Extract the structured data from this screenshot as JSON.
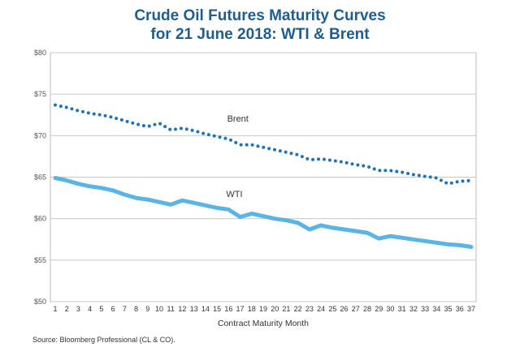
{
  "chart_data": {
    "type": "line",
    "title_lines": [
      "Crude Oil Futures Maturity Curves",
      "for 21 June 2018: WTI & Brent"
    ],
    "xlabel": "Contract Maturity Month",
    "ylabel": "",
    "x": [
      1,
      2,
      3,
      4,
      5,
      6,
      7,
      8,
      9,
      10,
      11,
      12,
      13,
      14,
      15,
      16,
      17,
      18,
      19,
      20,
      21,
      22,
      23,
      24,
      25,
      26,
      27,
      28,
      29,
      30,
      31,
      32,
      33,
      34,
      35,
      36,
      37
    ],
    "xlim": [
      1,
      37
    ],
    "ylim": [
      50,
      80
    ],
    "yticks": [
      50,
      55,
      60,
      65,
      70,
      75,
      80
    ],
    "ytick_labels": [
      "$50",
      "$55",
      "$60",
      "$65",
      "$70",
      "$75",
      "$80"
    ],
    "grid": true,
    "series": [
      {
        "name": "Brent",
        "style": "dotted",
        "color": "#1f72b8",
        "values": [
          73.7,
          73.4,
          73.0,
          72.7,
          72.5,
          72.2,
          71.8,
          71.4,
          71.1,
          71.5,
          70.7,
          70.9,
          70.6,
          70.2,
          69.9,
          69.6,
          68.9,
          68.9,
          68.6,
          68.3,
          68.0,
          67.7,
          67.1,
          67.2,
          67.0,
          66.8,
          66.5,
          66.3,
          65.8,
          65.8,
          65.6,
          65.3,
          65.1,
          64.9,
          64.2,
          64.5,
          64.6
        ]
      },
      {
        "name": "WTI",
        "style": "solid",
        "color": "#5ab4e5",
        "values": [
          64.9,
          64.6,
          64.2,
          63.9,
          63.7,
          63.4,
          62.9,
          62.5,
          62.3,
          62.0,
          61.7,
          62.2,
          61.9,
          61.6,
          61.3,
          61.1,
          60.2,
          60.6,
          60.3,
          60.0,
          59.8,
          59.5,
          58.7,
          59.2,
          58.9,
          58.7,
          58.5,
          58.3,
          57.6,
          57.9,
          57.7,
          57.5,
          57.3,
          57.1,
          56.9,
          56.8,
          56.6
        ]
      }
    ]
  },
  "source": "Source: Bloomberg Professional (CL & CO)."
}
